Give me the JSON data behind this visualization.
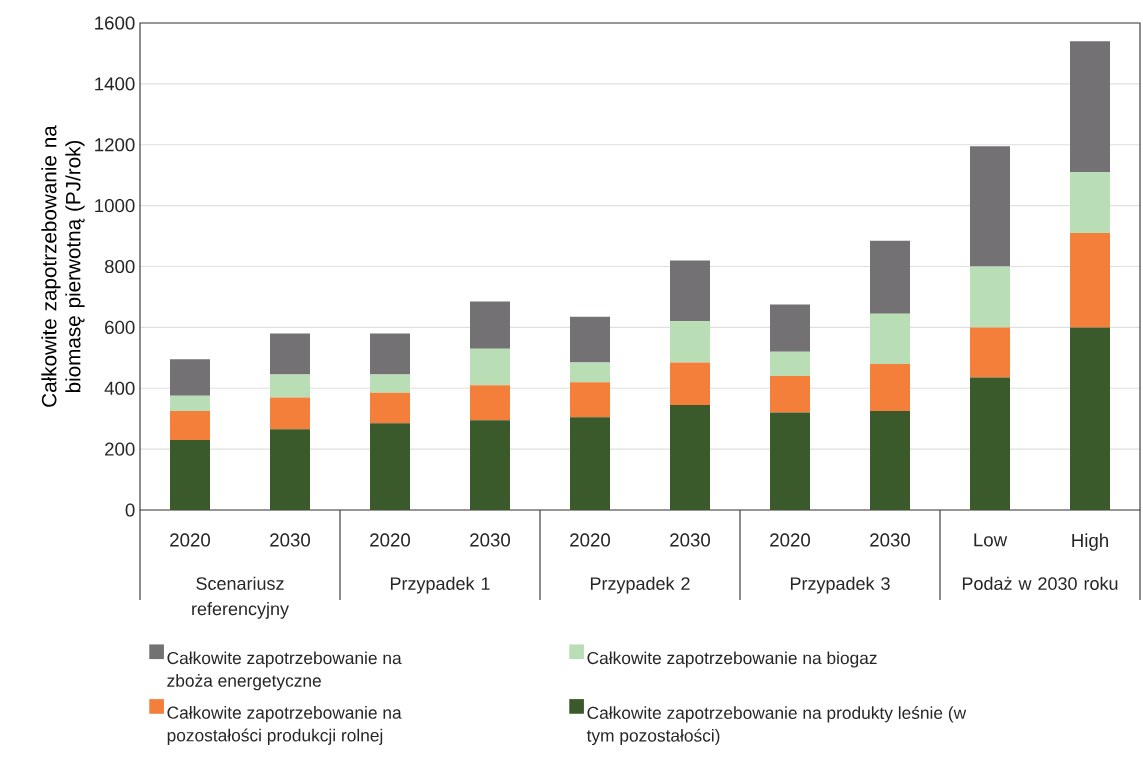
{
  "chart_data": {
    "type": "bar",
    "stacked": true,
    "ylabel": "Całkowite zapotrzebowanie na biomasę pierwotną (PJ/rok)",
    "categories": [
      "2020",
      "2030",
      "2020",
      "2030",
      "2020",
      "2030",
      "2020",
      "2030",
      "Low",
      "High"
    ],
    "annotations": [
      "Scenariusz referencyjny",
      "Przypadek 1",
      "Przypadek 2",
      "Przypadek 3",
      "Podaż w 2030 roku"
    ],
    "series": [
      {
        "name": "Całkowite zapotrzebowanie na produkty leśnie (w tym pozostałości)",
        "color": "#3a5a2b",
        "values": [
          230,
          265,
          285,
          295,
          305,
          345,
          320,
          325,
          435,
          600
        ]
      },
      {
        "name": "Całkowite zapotrzebowanie na pozostałości produkcji rolnej",
        "color": "#f47f3a",
        "values": [
          95,
          105,
          100,
          115,
          115,
          140,
          120,
          155,
          165,
          310
        ]
      },
      {
        "name": "Całkowite zapotrzebowanie na biogaz",
        "color": "#b9ddb4",
        "values": [
          50,
          75,
          60,
          120,
          65,
          135,
          80,
          165,
          200,
          200
        ]
      },
      {
        "name": "Całkowite zapotrzebowanie na zboża energetyczne",
        "color": "#737173",
        "values": [
          120,
          135,
          135,
          155,
          150,
          200,
          155,
          240,
          395,
          430
        ]
      }
    ],
    "ylim": [
      0,
      1600
    ],
    "yticks": [
      0,
      200,
      400,
      600,
      800,
      1000,
      1200,
      1400,
      1600
    ],
    "grid": "y",
    "legend": "bottom"
  }
}
